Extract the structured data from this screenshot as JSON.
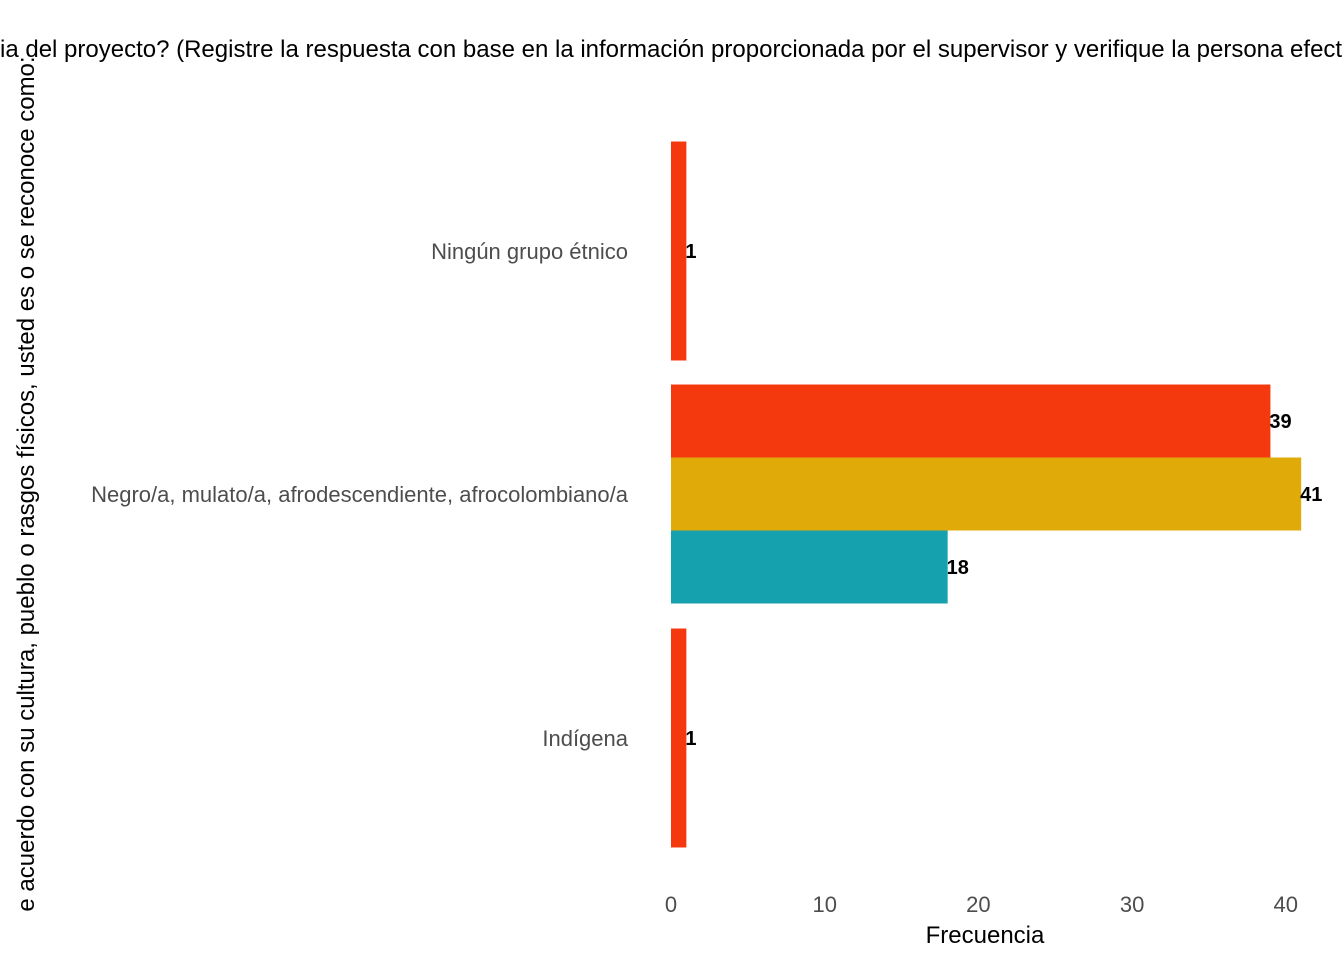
{
  "chart_data": {
    "type": "bar",
    "orientation": "horizontal",
    "title": "",
    "subtitle": "ia del proyecto? (Registre la respuesta con base en la información proporcionada por el supervisor y verifique la persona efect",
    "xlabel": "Frecuencia",
    "ylabel": "e acuerdo con su cultura, pueblo o rasgos físicos, usted es o se reconoce como:",
    "xlim": [
      0,
      41
    ],
    "xticks": [
      0,
      10,
      20,
      30,
      40
    ],
    "grid": false,
    "legend": "none",
    "categories": [
      "Ningún grupo étnico",
      "Negro/a, mulato/a, afrodescendiente, afrocolombiano/a",
      "Indígena"
    ],
    "series": [
      {
        "color": "#F5390F",
        "values": [
          1,
          39,
          1
        ]
      },
      {
        "color": "#E0AB09",
        "values": [
          null,
          41,
          null
        ]
      },
      {
        "color": "#16A1AE",
        "values": [
          null,
          18,
          null
        ]
      }
    ]
  }
}
